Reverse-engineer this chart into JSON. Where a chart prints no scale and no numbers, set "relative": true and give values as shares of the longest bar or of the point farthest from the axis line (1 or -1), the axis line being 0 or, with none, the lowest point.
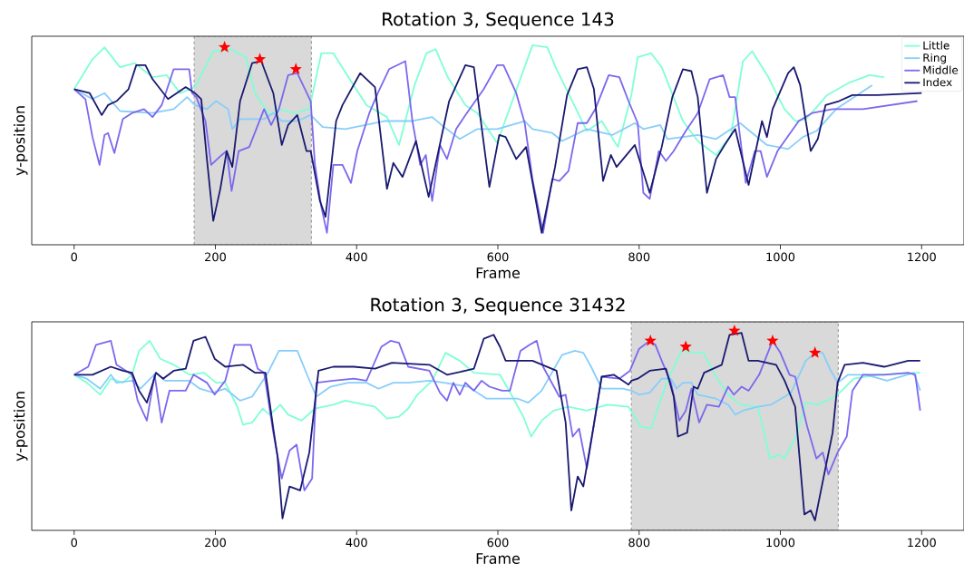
{
  "chart_data": [
    {
      "type": "line",
      "title": "Rotation 3, Sequence 143",
      "xlabel": "Frame",
      "ylabel": "y-position",
      "relative": true,
      "xlim": [
        -60,
        1260
      ],
      "xticks": [
        0,
        200,
        400,
        600,
        800,
        1000,
        1200
      ],
      "legend": "top right",
      "bands": [
        {
          "axis": "x",
          "from": 170,
          "to": 336,
          "color": "#d9d9d9"
        }
      ],
      "series": [
        {
          "name": "Little",
          "color": "#7fffd4",
          "x": [
            0,
            26,
            43,
            65,
            86,
            111,
            131,
            150,
            171,
            197,
            222,
            243,
            256,
            277,
            290,
            311,
            333,
            350,
            367,
            392,
            414,
            443,
            460,
            482,
            499,
            512,
            529,
            554,
            571,
            599,
            649,
            670,
            683,
            704,
            726,
            747,
            770,
            789,
            798,
            817,
            832,
            862,
            883,
            909,
            930,
            947,
            960,
            983,
            994,
            1006,
            1021,
            1036,
            1049,
            1066,
            1096,
            1126,
            1147
          ],
          "values": [
            0.78,
            0.93,
            0.99,
            0.89,
            0.91,
            0.84,
            0.85,
            0.76,
            0.79,
            0.97,
            0.98,
            0.94,
            0.76,
            0.65,
            0.68,
            0.66,
            0.68,
            0.96,
            0.96,
            0.82,
            0.7,
            0.64,
            0.5,
            0.8,
            0.96,
            0.98,
            0.84,
            0.7,
            0.66,
            0.51,
            1.0,
            0.99,
            0.88,
            0.73,
            0.57,
            0.62,
            0.49,
            0.75,
            0.94,
            0.96,
            0.89,
            0.62,
            0.52,
            0.45,
            0.55,
            0.92,
            0.97,
            0.84,
            0.76,
            0.68,
            0.62,
            0.63,
            0.68,
            0.75,
            0.81,
            0.85,
            0.84
          ]
        },
        {
          "name": "Ring",
          "color": "#87cefa",
          "x": [
            0,
            26,
            43,
            65,
            111,
            141,
            160,
            171,
            188,
            201,
            218,
            224,
            235,
            269,
            282,
            294,
            316,
            335,
            352,
            384,
            439,
            452,
            477,
            507,
            524,
            546,
            571,
            599,
            638,
            649,
            677,
            691,
            726,
            762,
            794,
            806,
            830,
            840,
            883,
            909,
            943,
            981,
            1011,
            1032,
            1051,
            1079,
            1130
          ],
          "values": [
            0.78,
            0.73,
            0.76,
            0.67,
            0.66,
            0.68,
            0.74,
            0.7,
            0.68,
            0.72,
            0.68,
            0.58,
            0.63,
            0.63,
            0.66,
            0.62,
            0.62,
            0.65,
            0.59,
            0.58,
            0.62,
            0.62,
            0.62,
            0.64,
            0.59,
            0.53,
            0.58,
            0.58,
            0.62,
            0.58,
            0.56,
            0.52,
            0.58,
            0.55,
            0.61,
            0.58,
            0.6,
            0.53,
            0.55,
            0.53,
            0.61,
            0.5,
            0.48,
            0.54,
            0.57,
            0.68,
            0.8
          ]
        },
        {
          "name": "Middle",
          "color": "#7b68ee",
          "x": [
            0,
            16,
            26,
            36,
            43,
            48,
            57,
            69,
            82,
            99,
            111,
            124,
            141,
            163,
            167,
            173,
            186,
            194,
            209,
            216,
            223,
            233,
            248,
            269,
            279,
            290,
            303,
            316,
            335,
            341,
            350,
            358,
            367,
            380,
            392,
            401,
            418,
            430,
            446,
            469,
            479,
            490,
            498,
            507,
            518,
            528,
            541,
            554,
            580,
            599,
            608,
            626,
            638,
            649,
            664,
            677,
            687,
            700,
            713,
            726,
            738,
            757,
            772,
            785,
            798,
            806,
            815,
            828,
            838,
            849,
            866,
            883,
            900,
            919,
            928,
            936,
            951,
            964,
            972,
            981,
            996,
            1006,
            1026,
            1045,
            1074,
            1117,
            1194
          ],
          "values": [
            0.78,
            0.73,
            0.54,
            0.4,
            0.55,
            0.56,
            0.46,
            0.63,
            0.66,
            0.68,
            0.64,
            0.7,
            0.88,
            0.88,
            0.76,
            0.74,
            0.62,
            0.4,
            0.45,
            0.47,
            0.27,
            0.47,
            0.49,
            0.68,
            0.6,
            0.68,
            0.85,
            0.86,
            0.72,
            0.4,
            0.19,
            0.06,
            0.4,
            0.4,
            0.31,
            0.47,
            0.66,
            0.76,
            0.88,
            0.92,
            0.62,
            0.4,
            0.45,
            0.22,
            0.5,
            0.43,
            0.58,
            0.65,
            0.78,
            0.9,
            0.9,
            0.76,
            0.61,
            0.33,
            0.06,
            0.33,
            0.32,
            0.37,
            0.61,
            0.61,
            0.68,
            0.85,
            0.84,
            0.72,
            0.61,
            0.26,
            0.23,
            0.47,
            0.42,
            0.47,
            0.57,
            0.66,
            0.83,
            0.85,
            0.74,
            0.74,
            0.31,
            0.47,
            0.47,
            0.34,
            0.47,
            0.52,
            0.62,
            0.66,
            0.68,
            0.68,
            0.72
          ]
        },
        {
          "name": "Index",
          "color": "#191970",
          "x": [
            0,
            22,
            39,
            48,
            60,
            77,
            88,
            101,
            111,
            133,
            158,
            171,
            180,
            188,
            197,
            207,
            216,
            224,
            235,
            252,
            265,
            282,
            294,
            303,
            316,
            329,
            335,
            348,
            356,
            371,
            380,
            405,
            426,
            443,
            452,
            465,
            484,
            502,
            531,
            554,
            566,
            588,
            602,
            611,
            626,
            640,
            662,
            681,
            698,
            713,
            726,
            736,
            749,
            760,
            768,
            794,
            815,
            832,
            847,
            862,
            874,
            883,
            896,
            909,
            921,
            936,
            955,
            974,
            981,
            989,
            1011,
            1019,
            1028,
            1036,
            1043,
            1053,
            1064,
            1083,
            1102,
            1138,
            1200
          ],
          "values": [
            0.78,
            0.76,
            0.65,
            0.7,
            0.72,
            0.78,
            0.9,
            0.9,
            0.83,
            0.73,
            0.79,
            0.76,
            0.73,
            0.43,
            0.12,
            0.28,
            0.47,
            0.39,
            0.72,
            0.91,
            0.92,
            0.76,
            0.5,
            0.6,
            0.65,
            0.47,
            0.47,
            0.22,
            0.14,
            0.62,
            0.7,
            0.86,
            0.79,
            0.28,
            0.41,
            0.34,
            0.52,
            0.24,
            0.72,
            0.9,
            0.89,
            0.29,
            0.55,
            0.54,
            0.43,
            0.49,
            0.06,
            0.39,
            0.75,
            0.88,
            0.89,
            0.78,
            0.32,
            0.45,
            0.39,
            0.5,
            0.26,
            0.49,
            0.74,
            0.88,
            0.87,
            0.74,
            0.26,
            0.43,
            0.5,
            0.58,
            0.3,
            0.62,
            0.54,
            0.68,
            0.86,
            0.89,
            0.8,
            0.62,
            0.47,
            0.53,
            0.7,
            0.72,
            0.75,
            0.75,
            0.76
          ]
        },
        {
          "type": "scatter",
          "marker": "star",
          "color": "#ff0000",
          "x": [
            213,
            263,
            314
          ],
          "values": [
            0.99,
            0.93,
            0.88
          ]
        }
      ]
    },
    {
      "type": "line",
      "title": "Rotation 3, Sequence 31432",
      "xlabel": "Frame",
      "ylabel": "y-position",
      "relative": true,
      "xlim": [
        -60,
        1260
      ],
      "xticks": [
        0,
        200,
        400,
        600,
        800,
        1000,
        1200
      ],
      "bands": [
        {
          "axis": "x",
          "from": 789,
          "to": 1082,
          "color": "#d9d9d9"
        }
      ],
      "series": [
        {
          "color": "#7fffd4",
          "x": [
            0,
            18,
            37,
            52,
            69,
            82,
            92,
            107,
            122,
            141,
            163,
            184,
            201,
            214,
            231,
            239,
            252,
            267,
            277,
            292,
            303,
            322,
            341,
            367,
            384,
            426,
            443,
            460,
            473,
            486,
            507,
            526,
            546,
            566,
            603,
            619,
            636,
            647,
            662,
            679,
            700,
            726,
            755,
            785,
            802,
            817,
            830,
            840,
            860,
            879,
            891,
            909,
            926,
            943,
            968,
            977,
            985,
            998,
            1006,
            1023,
            1036,
            1053,
            1066,
            1081,
            1104,
            1138,
            1198
          ],
          "values": [
            0.78,
            0.74,
            0.68,
            0.76,
            0.74,
            0.78,
            0.9,
            0.95,
            0.86,
            0.83,
            0.78,
            0.79,
            0.74,
            0.74,
            0.62,
            0.53,
            0.54,
            0.61,
            0.58,
            0.63,
            0.58,
            0.55,
            0.61,
            0.63,
            0.65,
            0.62,
            0.56,
            0.57,
            0.61,
            0.68,
            0.75,
            0.89,
            0.85,
            0.79,
            0.78,
            0.68,
            0.57,
            0.47,
            0.55,
            0.6,
            0.62,
            0.6,
            0.63,
            0.62,
            0.52,
            0.51,
            0.65,
            0.75,
            0.9,
            0.89,
            0.89,
            0.77,
            0.68,
            0.63,
            0.62,
            0.49,
            0.36,
            0.38,
            0.36,
            0.48,
            0.64,
            0.63,
            0.65,
            0.68,
            0.76,
            0.78,
            0.79
          ]
        },
        {
          "color": "#87cefa",
          "x": [
            0,
            18,
            37,
            52,
            60,
            82,
            94,
            116,
            129,
            163,
            178,
            197,
            214,
            235,
            252,
            273,
            290,
            316,
            331,
            343,
            363,
            388,
            414,
            431,
            452,
            473,
            503,
            524,
            558,
            584,
            603,
            628,
            643,
            662,
            691,
            709,
            721,
            732,
            747,
            777,
            789,
            800,
            815,
            832,
            845,
            853,
            862,
            874,
            883,
            909,
            926,
            936,
            947,
            968,
            987,
            1006,
            1015,
            1036,
            1049,
            1060,
            1070,
            1081,
            1096,
            1121,
            1151,
            1189,
            1198
          ],
          "values": [
            0.78,
            0.76,
            0.71,
            0.78,
            0.74,
            0.75,
            0.71,
            0.79,
            0.75,
            0.75,
            0.71,
            0.69,
            0.71,
            0.65,
            0.67,
            0.78,
            0.9,
            0.9,
            0.77,
            0.67,
            0.72,
            0.74,
            0.74,
            0.71,
            0.74,
            0.74,
            0.75,
            0.74,
            0.72,
            0.66,
            0.66,
            0.66,
            0.64,
            0.7,
            0.88,
            0.9,
            0.89,
            0.82,
            0.71,
            0.71,
            0.7,
            0.68,
            0.69,
            0.76,
            0.76,
            0.71,
            0.74,
            0.74,
            0.68,
            0.66,
            0.63,
            0.58,
            0.6,
            0.62,
            0.63,
            0.67,
            0.69,
            0.85,
            0.89,
            0.89,
            0.81,
            0.74,
            0.78,
            0.78,
            0.75,
            0.79,
            0.7
          ]
        },
        {
          "color": "#7b68ee",
          "x": [
            0,
            20,
            31,
            52,
            60,
            82,
            90,
            103,
            114,
            124,
            135,
            158,
            169,
            188,
            199,
            214,
            227,
            250,
            260,
            269,
            282,
            294,
            305,
            315,
            326,
            337,
            343,
            367,
            396,
            414,
            435,
            448,
            460,
            473,
            503,
            518,
            528,
            537,
            546,
            554,
            566,
            577,
            588,
            606,
            617,
            632,
            645,
            655,
            664,
            687,
            696,
            706,
            715,
            726,
            747,
            772,
            787,
            800,
            815,
            823,
            832,
            845,
            857,
            866,
            874,
            885,
            896,
            913,
            926,
            934,
            945,
            955,
            970,
            989,
            1000,
            1013,
            1021,
            1038,
            1051,
            1060,
            1068,
            1081,
            1094,
            1102,
            1117,
            1147,
            1181,
            1191,
            1198
          ],
          "values": [
            0.78,
            0.82,
            0.93,
            0.95,
            0.83,
            0.78,
            0.65,
            0.55,
            0.78,
            0.54,
            0.7,
            0.7,
            0.78,
            0.74,
            0.68,
            0.75,
            0.93,
            0.93,
            0.81,
            0.79,
            0.49,
            0.26,
            0.4,
            0.43,
            0.2,
            0.26,
            0.74,
            0.75,
            0.76,
            0.75,
            0.92,
            0.95,
            0.94,
            0.82,
            0.8,
            0.69,
            0.65,
            0.74,
            0.68,
            0.74,
            0.7,
            0.75,
            0.72,
            0.7,
            0.7,
            0.9,
            0.93,
            0.95,
            0.82,
            0.67,
            0.68,
            0.47,
            0.51,
            0.31,
            0.77,
            0.76,
            0.8,
            0.91,
            0.95,
            0.93,
            0.85,
            0.74,
            0.55,
            0.6,
            0.71,
            0.54,
            0.63,
            0.62,
            0.72,
            0.68,
            0.72,
            0.7,
            0.78,
            0.95,
            0.89,
            0.78,
            0.77,
            0.52,
            0.36,
            0.39,
            0.28,
            0.39,
            0.47,
            0.7,
            0.78,
            0.78,
            0.79,
            0.78,
            0.6
          ]
        },
        {
          "color": "#191970",
          "x": [
            0,
            26,
            52,
            69,
            82,
            92,
            103,
            116,
            126,
            141,
            158,
            169,
            186,
            199,
            214,
            239,
            256,
            271,
            282,
            288,
            295,
            305,
            320,
            333,
            346,
            367,
            396,
            426,
            450,
            503,
            528,
            554,
            566,
            580,
            594,
            603,
            611,
            628,
            649,
            683,
            696,
            704,
            713,
            721,
            734,
            747,
            764,
            785,
            789,
            798,
            815,
            838,
            849,
            855,
            868,
            877,
            883,
            892,
            917,
            928,
            945,
            955,
            968,
            994,
            1006,
            1021,
            1034,
            1043,
            1049,
            1062,
            1074,
            1081,
            1091,
            1117,
            1147,
            1181,
            1198
          ],
          "values": [
            0.78,
            0.78,
            0.82,
            0.8,
            0.79,
            0.7,
            0.64,
            0.79,
            0.76,
            0.8,
            0.81,
            0.95,
            0.97,
            0.86,
            0.82,
            0.83,
            0.79,
            0.79,
            0.51,
            0.37,
            0.06,
            0.22,
            0.2,
            0.39,
            0.8,
            0.82,
            0.82,
            0.81,
            0.84,
            0.83,
            0.78,
            0.8,
            0.81,
            0.96,
            0.98,
            0.92,
            0.85,
            0.85,
            0.85,
            0.8,
            0.54,
            0.1,
            0.27,
            0.22,
            0.49,
            0.77,
            0.78,
            0.73,
            0.75,
            0.76,
            0.8,
            0.81,
            0.67,
            0.47,
            0.49,
            0.72,
            0.71,
            0.79,
            0.83,
            0.98,
            0.99,
            0.85,
            0.85,
            0.83,
            0.75,
            0.62,
            0.08,
            0.1,
            0.05,
            0.28,
            0.49,
            0.74,
            0.83,
            0.84,
            0.82,
            0.85,
            0.85
          ]
        },
        {
          "type": "scatter",
          "marker": "star",
          "color": "#ff0000",
          "x": [
            816,
            866,
            935,
            989,
            1049
          ],
          "values": [
            0.95,
            0.92,
            1.0,
            0.95,
            0.89
          ]
        }
      ]
    }
  ]
}
